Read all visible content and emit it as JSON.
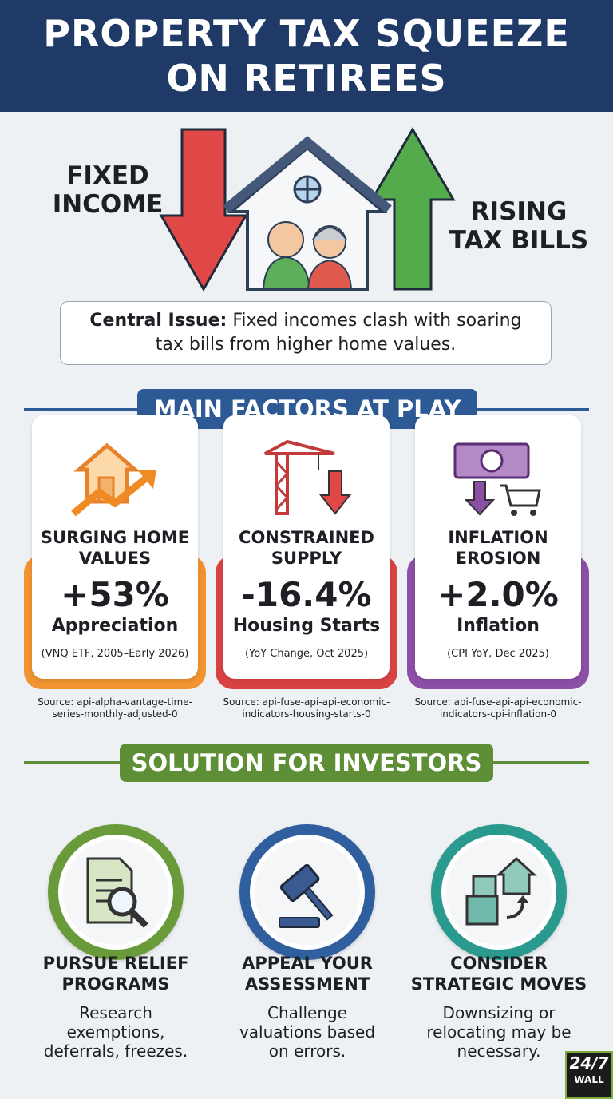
{
  "header": {
    "title": "PROPERTY TAX SQUEEZE ON RETIREES"
  },
  "hero": {
    "left_label": "FIXED INCOME",
    "right_label": "RISING TAX BILLS"
  },
  "central_issue": {
    "label": "Central Issue:",
    "text": "Fixed incomes clash with soaring tax bills from higher home values."
  },
  "factors": {
    "heading": "MAIN FACTORS AT PLAY",
    "items": [
      {
        "title": "SURGING HOME VALUES",
        "value": "+53%",
        "metric": "Appreciation",
        "note": "(VNQ ETF, 2005–Early 2026)",
        "source": "Source: api-alpha-vantage-time-series-monthly-adjusted-0"
      },
      {
        "title": "CONSTRAINED SUPPLY",
        "value": "-16.4%",
        "metric": "Housing Starts",
        "note": "(YoY Change, Oct 2025)",
        "source": "Source: api-fuse-api-api-economic-indicators-housing-starts-0"
      },
      {
        "title": "INFLATION EROSION",
        "value": "+2.0%",
        "metric": "Inflation",
        "note": "(CPI YoY, Dec 2025)",
        "source": "Source: api-fuse-api-api-economic-indicators-cpi-inflation-0"
      }
    ]
  },
  "solutions": {
    "heading": "SOLUTION FOR INVESTORS",
    "items": [
      {
        "title": "PURSUE RELIEF PROGRAMS",
        "text": "Research exemptions, deferrals, freezes."
      },
      {
        "title": "APPEAL YOUR ASSESSMENT",
        "text": "Challenge valuations based on errors."
      },
      {
        "title": "CONSIDER STRATEGIC MOVES",
        "text": "Downsizing or relocating may be necessary."
      }
    ]
  },
  "logo": {
    "text": "24/7",
    "sub": "WALL"
  }
}
